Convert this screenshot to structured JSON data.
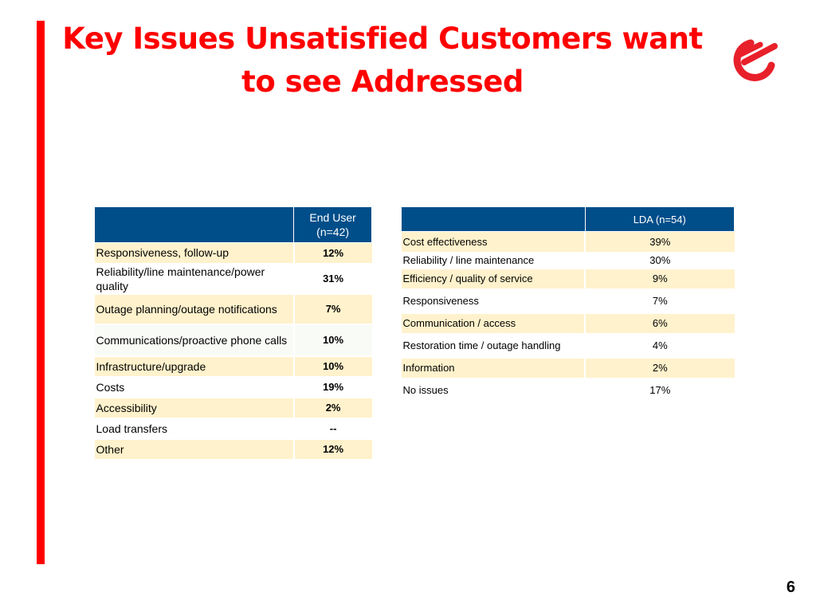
{
  "slide": {
    "title_line1": "Key Issues Unsatisfied Customers want",
    "title_line2": "to see Addressed",
    "page_number": "6",
    "accent_color": "#ff0000",
    "header_color": "#004e89",
    "row_shade_color": "#fff2cc",
    "logo_icon": "company-logo-icon"
  },
  "end_user_table": {
    "header_label": "",
    "header_value_line1": "End User",
    "header_value_line2": "(n=42)",
    "rows": [
      {
        "label": "Responsiveness, follow-up",
        "value": "12%"
      },
      {
        "label": "Reliability/line maintenance/power quality",
        "value": "31%"
      },
      {
        "label": "Outage planning/outage notifications",
        "value": "7%"
      },
      {
        "label": "Communications/proactive phone calls",
        "value": "10%"
      },
      {
        "label": "Infrastructure/upgrade",
        "value": "10%"
      },
      {
        "label": "Costs",
        "value": "19%"
      },
      {
        "label": "Accessibility",
        "value": "2%"
      },
      {
        "label": "Load transfers",
        "value": "--"
      },
      {
        "label": "Other",
        "value": "12%"
      }
    ]
  },
  "lda_table": {
    "header_label": "",
    "header_value": "LDA (n=54)",
    "rows": [
      {
        "label": "Cost effectiveness",
        "value": "39%"
      },
      {
        "label": "Reliability / line maintenance",
        "value": "30%"
      },
      {
        "label": "Efficiency / quality of  service",
        "value": "9%"
      },
      {
        "label": "Responsiveness",
        "value": "7%"
      },
      {
        "label": "Communication / access",
        "value": "6%"
      },
      {
        "label": "Restoration time / outage handling",
        "value": "4%"
      },
      {
        "label": "Information",
        "value": "2%"
      },
      {
        "label": "No issues",
        "value": "17%"
      }
    ]
  }
}
